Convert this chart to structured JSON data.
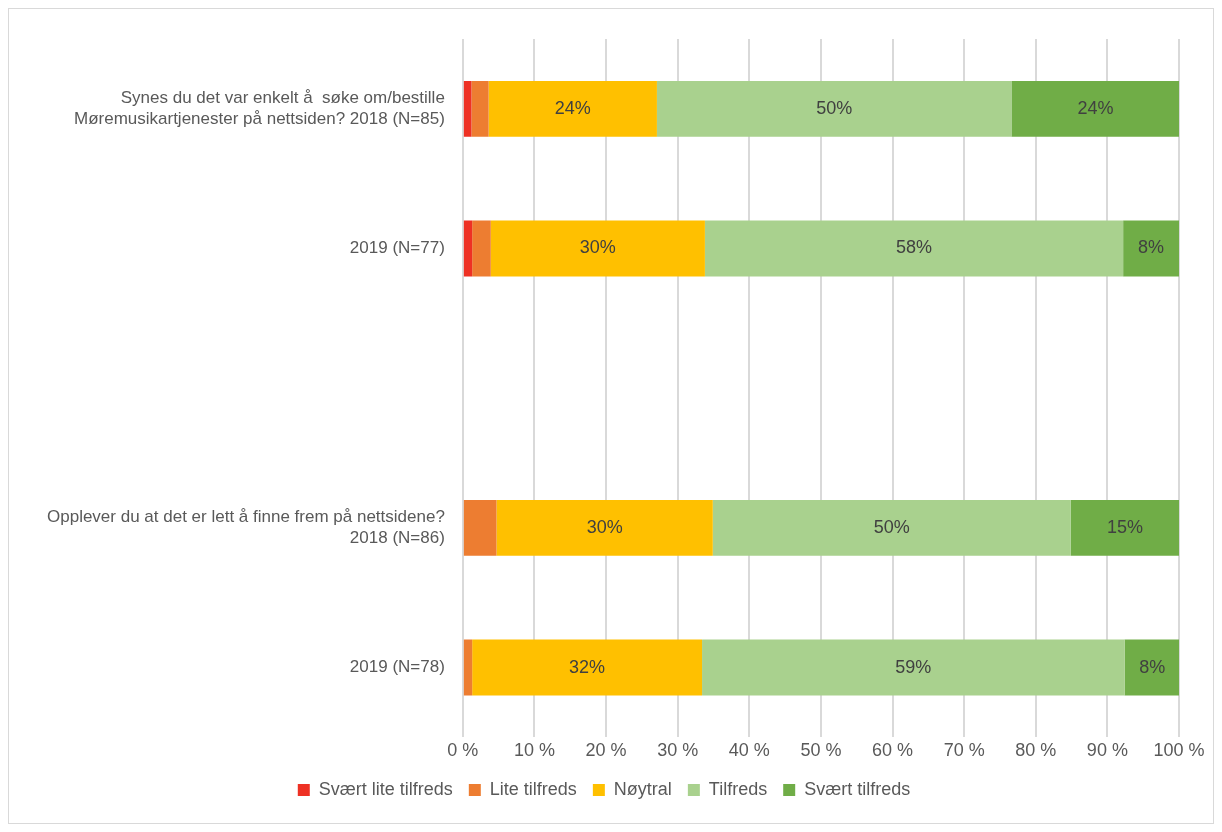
{
  "chart_data": {
    "type": "bar",
    "orientation": "horizontal",
    "stacked": true,
    "categories": [
      "Synes du det var enkelt å  søke om/bestille Møremusikartjenester på nettsiden? 2018 (N=85)",
      "2019 (N=77)",
      null,
      "Opplever du at det er lett å finne frem på nettsidene? 2018 (N=86)",
      "2019 (N=78)"
    ],
    "series": [
      {
        "name": "Svært lite tilfreds",
        "color": "#ee3124",
        "values": [
          1.2,
          1.3,
          null,
          0,
          0
        ],
        "value_labels": [
          null,
          null,
          null,
          null,
          null
        ]
      },
      {
        "name": "Lite tilfreds",
        "color": "#ed7d31",
        "values": [
          2.4,
          2.6,
          null,
          4.7,
          1.3
        ],
        "value_labels": [
          null,
          null,
          null,
          null,
          null
        ]
      },
      {
        "name": "Nøytral",
        "color": "#ffc000",
        "values": [
          23.5,
          29.9,
          null,
          30.2,
          32.1
        ],
        "value_labels": [
          "24%",
          "30%",
          null,
          "30%",
          "32%"
        ]
      },
      {
        "name": "Tilfreds",
        "color": "#a9d18e",
        "values": [
          49.5,
          58.4,
          null,
          50.0,
          59.0
        ],
        "value_labels": [
          "50%",
          "58%",
          null,
          "50%",
          "59%"
        ]
      },
      {
        "name": "Svært tilfreds",
        "color": "#70ad47",
        "values": [
          23.5,
          7.8,
          null,
          15.1,
          7.7
        ],
        "value_labels": [
          "24%",
          "8%",
          null,
          "15%",
          "8%"
        ]
      }
    ],
    "xlim": [
      0,
      100
    ],
    "xticks": [
      {
        "value": 0,
        "label": "0 %"
      },
      {
        "value": 10,
        "label": "10 %"
      },
      {
        "value": 20,
        "label": "20 %"
      },
      {
        "value": 30,
        "label": "30 %"
      },
      {
        "value": 40,
        "label": "40 %"
      },
      {
        "value": 50,
        "label": "50 %"
      },
      {
        "value": 60,
        "label": "60 %"
      },
      {
        "value": 70,
        "label": "70 %"
      },
      {
        "value": 80,
        "label": "80 %"
      },
      {
        "value": 90,
        "label": "90 %"
      },
      {
        "value": 100,
        "label": "100 %"
      }
    ],
    "grid": "x",
    "legend": "bottom"
  }
}
